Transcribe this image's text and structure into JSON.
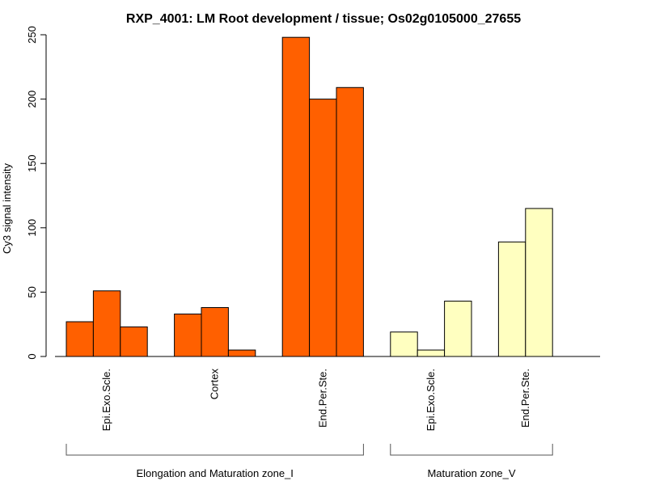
{
  "chart_data": {
    "type": "bar",
    "title": "RXP_4001: LM Root development / tissue; Os02g0105000_27655",
    "ylabel": "Cy3 signal intensity",
    "xlabel": "",
    "ylim": [
      0,
      250
    ],
    "yticks": [
      0,
      50,
      100,
      150,
      200,
      250
    ],
    "colors": {
      "Elongation and Maturation zone_I": "#ff6000",
      "Maturation zone_V": "#ffffc0"
    },
    "zones": [
      {
        "name": "Elongation and Maturation zone_I",
        "color": "#ff6000",
        "categories": [
          {
            "label": "Epi.Exo.Scle.",
            "values": [
              27,
              51,
              23
            ]
          },
          {
            "label": "Cortex",
            "values": [
              33,
              38,
              5
            ]
          },
          {
            "label": "End.Per.Ste.",
            "values": [
              248,
              200,
              209
            ]
          }
        ]
      },
      {
        "name": "Maturation zone_V",
        "color": "#ffffc0",
        "categories": [
          {
            "label": "Epi.Exo.Scle.",
            "values": [
              19,
              5,
              43
            ]
          },
          {
            "label": "End.Per.Ste.",
            "values": [
              89,
              115
            ]
          }
        ]
      }
    ]
  }
}
